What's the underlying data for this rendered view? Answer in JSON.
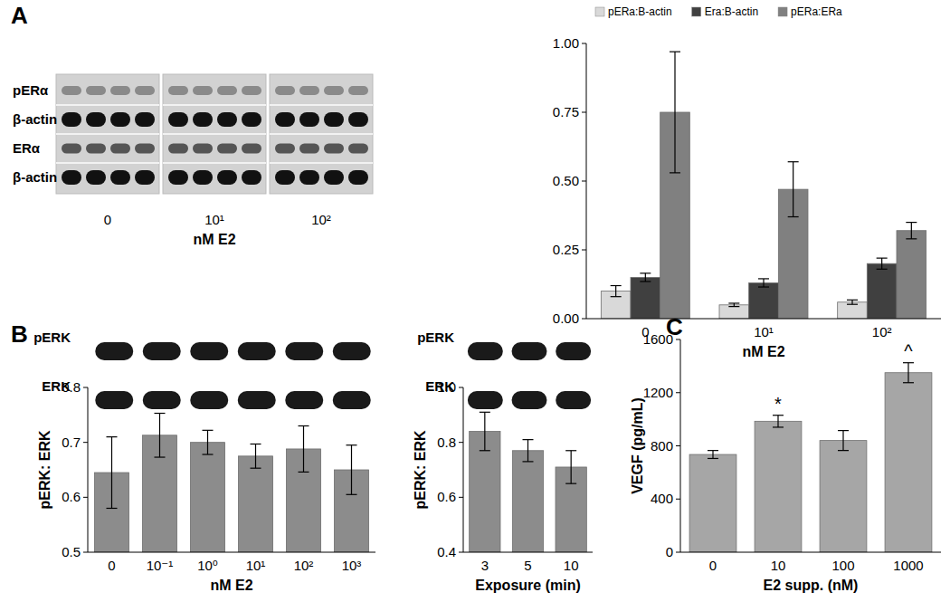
{
  "chart_data": [
    {
      "type": "bar",
      "title": "A",
      "categories": [
        "0",
        "10¹",
        "10²"
      ],
      "x_label": "nM E2",
      "series": [
        {
          "name": "pERa:B-actin",
          "color": "#d9d9d9",
          "values": [
            0.1,
            0.05,
            0.06
          ],
          "errors": [
            0.02,
            0.006,
            0.008
          ]
        },
        {
          "name": "Era:B-actin",
          "color": "#404040",
          "values": [
            0.15,
            0.13,
            0.2
          ],
          "errors": [
            0.015,
            0.015,
            0.02
          ]
        },
        {
          "name": "pERa:ERa",
          "color": "#808080",
          "values": [
            0.75,
            0.47,
            0.32
          ],
          "errors": [
            0.22,
            0.1,
            0.03
          ]
        }
      ],
      "ylim": [
        0,
        1
      ],
      "yticks": [
        {
          "value": 0,
          "label": "0.00"
        },
        {
          "value": 0.25,
          "label": "0.25"
        },
        {
          "value": 0.5,
          "label": "0.50"
        },
        {
          "value": 0.75,
          "label": "0.75"
        },
        {
          "value": 1,
          "label": "1.00"
        }
      ],
      "legend": "top",
      "grid": false
    },
    {
      "type": "bar",
      "title": "B",
      "categories": [
        "0",
        "10⁻¹",
        "10⁰",
        "10¹",
        "10²",
        "10³"
      ],
      "x_label": "nM E2",
      "y_label": "pERK: ERK",
      "values": [
        0.645,
        0.713,
        0.7,
        0.675,
        0.688,
        0.65
      ],
      "errors": [
        0.065,
        0.04,
        0.022,
        0.022,
        0.042,
        0.045
      ],
      "color": "#8c8c8c",
      "ylim": [
        0.5,
        0.8
      ],
      "yticks": [
        0.5,
        0.6,
        0.7,
        0.8
      ],
      "grid": false
    },
    {
      "type": "bar",
      "categories": [
        "3",
        "5",
        "10"
      ],
      "x_label": "Exposure (min)",
      "y_label": "pERK: ERK",
      "values": [
        0.84,
        0.77,
        0.71
      ],
      "errors": [
        0.07,
        0.04,
        0.06
      ],
      "color": "#8c8c8c",
      "ylim": [
        0.4,
        1.0
      ],
      "yticks": [
        0.4,
        0.6,
        0.8,
        {
          "value": 1.0,
          "label": "1.0"
        }
      ],
      "grid": false
    },
    {
      "type": "bar",
      "title": "C",
      "categories": [
        "0",
        "10",
        "100",
        "1000"
      ],
      "x_label": "E2 supp.  (nM)",
      "y_label": "VEGF (pg/mL)",
      "values": [
        735,
        985,
        840,
        1350
      ],
      "errors": [
        30,
        45,
        75,
        75
      ],
      "color": "#a6a6a6",
      "ylim": [
        0,
        1600
      ],
      "yticks": [
        0,
        400,
        800,
        1200,
        1600
      ],
      "grid": false,
      "annotations": [
        {
          "text": "*",
          "x": "10"
        },
        {
          "text": "^",
          "x": "1000"
        }
      ]
    }
  ],
  "blots": {
    "panel_a": {
      "rows": [
        "pERα",
        "β-actin",
        "ERα",
        "β-actin"
      ],
      "groups": [
        "0",
        "10¹",
        "10²"
      ],
      "x_label": "nM E2"
    },
    "panel_b_dose": {
      "rows": [
        "pERK",
        "ERK"
      ]
    },
    "panel_b_time": {
      "rows": [
        "pERK",
        "ERK"
      ]
    }
  }
}
